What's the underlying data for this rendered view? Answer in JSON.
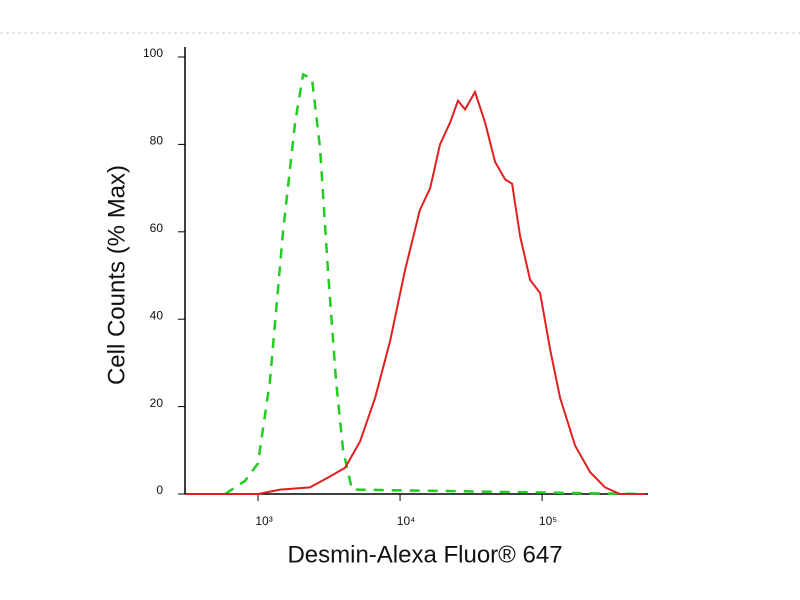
{
  "chart_data": {
    "type": "line",
    "x_label": "Desmin-Alexa Fluor® 647",
    "y_label": "Cell Counts (% Max)",
    "xscale": "log",
    "xlim": [
      306,
      557000
    ],
    "ylim": [
      0,
      100
    ],
    "xticks": [
      {
        "value": 1000,
        "label": "10³"
      },
      {
        "value": 10000,
        "label": "10⁴"
      },
      {
        "value": 100000,
        "label": "10⁵"
      }
    ],
    "yticks": [
      0,
      20,
      40,
      60,
      80,
      100
    ],
    "series": [
      {
        "color": "#22cc22",
        "dashed": true,
        "x": [
          586,
          809,
          1000,
          1215,
          1500,
          1824,
          2075,
          2400,
          2735,
          3110,
          3540,
          3970,
          4590,
          500000
        ],
        "values": [
          0,
          3,
          7,
          26,
          60,
          85,
          96,
          95,
          79,
          51,
          26,
          10,
          1,
          0
        ]
      },
      {
        "color": "#e02020",
        "dashed": false,
        "x": [
          310,
          1000,
          1430,
          2320,
          3210,
          4100,
          5220,
          6670,
          8510,
          10800,
          13800,
          16300,
          19100,
          22500,
          25600,
          28700,
          33700,
          39700,
          46700,
          54900,
          61500,
          70000,
          82300,
          96800,
          114000,
          134000,
          171000,
          218000,
          278000,
          354000,
          531000
        ],
        "values": [
          0,
          0,
          1,
          1.5,
          4,
          6,
          12,
          22,
          35,
          51,
          65,
          70,
          80,
          85,
          90,
          88,
          92,
          85,
          76,
          72,
          71,
          59,
          49,
          46,
          33,
          22,
          11,
          5,
          1.5,
          0,
          0
        ]
      }
    ]
  }
}
